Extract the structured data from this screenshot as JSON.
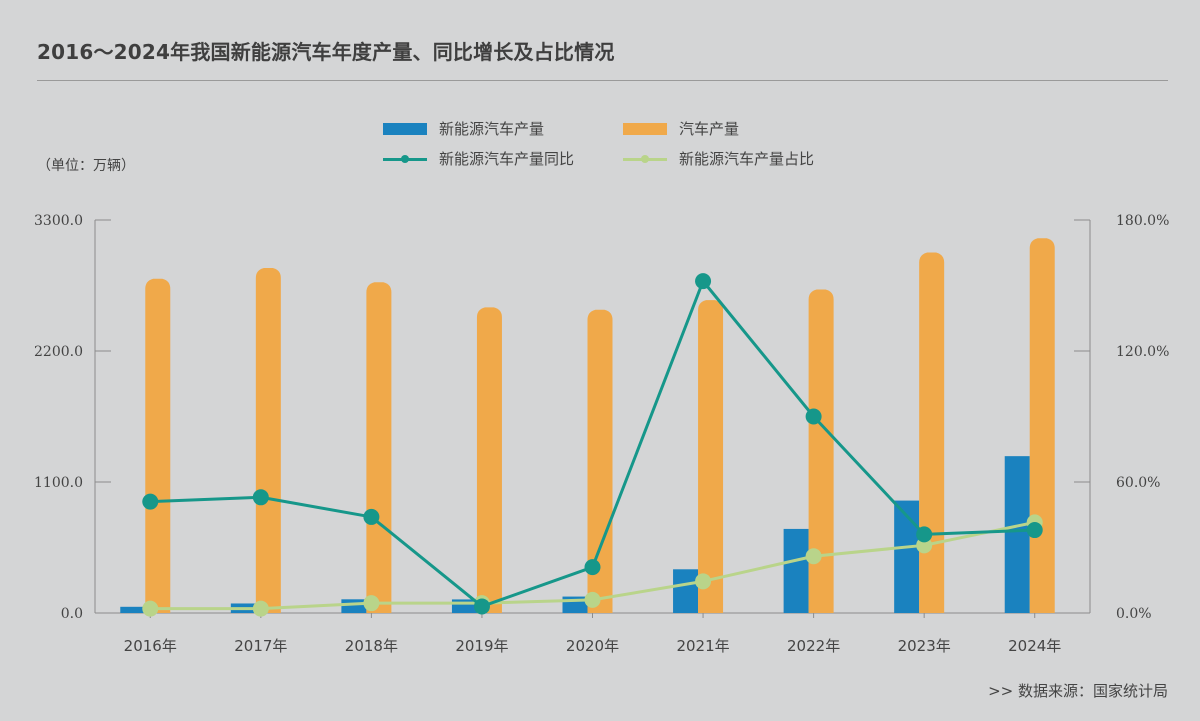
{
  "title": "2016～2024年我国新能源汽车年度产量、同比增长及占比情况",
  "unit_label": "（单位：万辆）",
  "source": ">>  数据来源：国家统计局",
  "colors": {
    "nev_bar": "#1a82bf",
    "car_bar": "#f0a94a",
    "yoy_line": "#16978a",
    "share_line": "#b9d48a",
    "axis": "#8c8c8c"
  },
  "chart_data": {
    "type": "bar+line",
    "categories": [
      "2016年",
      "2017年",
      "2018年",
      "2019年",
      "2020年",
      "2021年",
      "2022年",
      "2023年",
      "2024年"
    ],
    "left_axis": {
      "min": 0,
      "max": 3300,
      "ticks": [
        "0.0",
        "1100.0",
        "2200.0",
        "3300.0"
      ],
      "tick_values": [
        0,
        1100,
        2200,
        3300
      ]
    },
    "right_axis": {
      "min": 0,
      "max": 180,
      "ticks": [
        "0.0%",
        "60.0%",
        "120.0%",
        "180.0%"
      ],
      "tick_values": [
        0,
        60,
        120,
        180
      ]
    },
    "series": [
      {
        "name": "新能源汽车产量",
        "kind": "bar",
        "axis": "left",
        "values": [
          52,
          80,
          115,
          114,
          138,
          367,
          706,
          944,
          1317
        ]
      },
      {
        "name": "汽车产量",
        "kind": "bar",
        "axis": "left",
        "values": [
          2790,
          2880,
          2760,
          2550,
          2530,
          2610,
          2700,
          3010,
          3130
        ]
      },
      {
        "name": "新能源汽车产量同比",
        "kind": "line",
        "axis": "right",
        "values": [
          51,
          53,
          44,
          3,
          21,
          152,
          90,
          36,
          38
        ]
      },
      {
        "name": "新能源汽车产量占比",
        "kind": "line",
        "axis": "right",
        "values": [
          2,
          2,
          4.5,
          4.5,
          6,
          14.5,
          26,
          31,
          41.5
        ]
      }
    ]
  }
}
